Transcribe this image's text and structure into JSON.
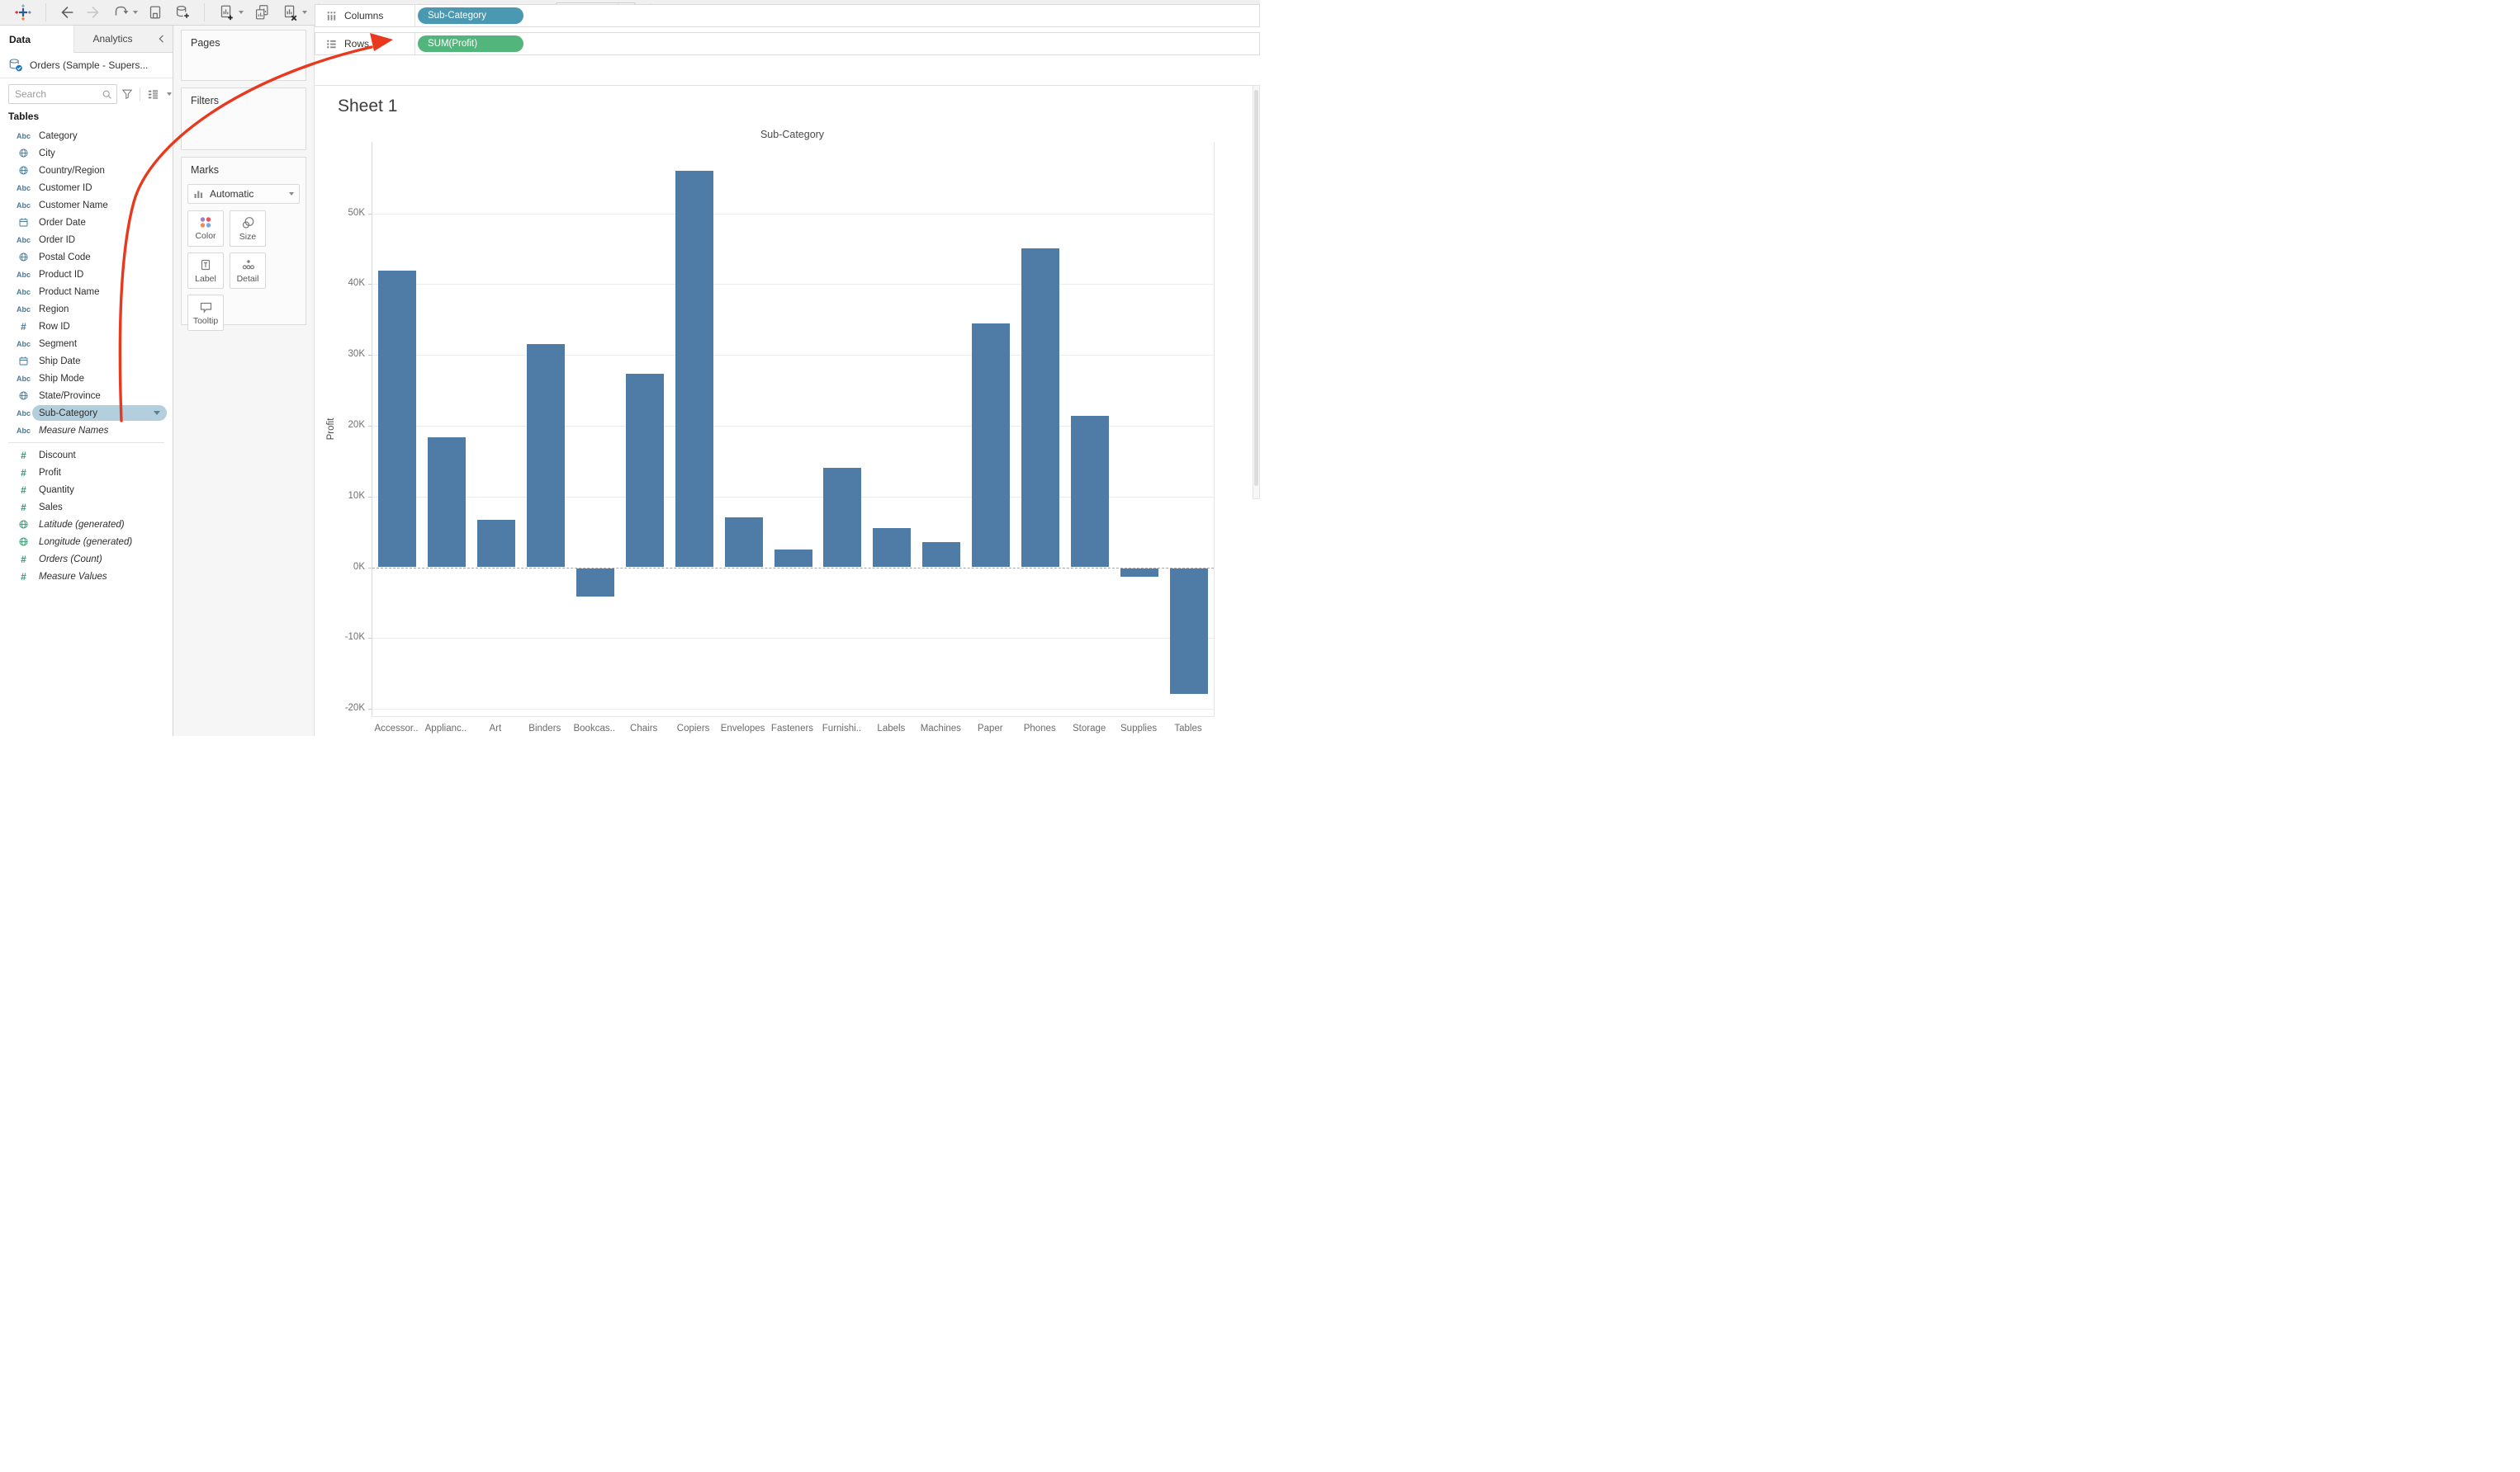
{
  "toolbar": {
    "fit_mode": "Standard"
  },
  "sidebar": {
    "tab_data": "Data",
    "tab_analytics": "Analytics",
    "datasource": "Orders (Sample - Supers...",
    "search_placeholder": "Search",
    "tables_label": "Tables",
    "fields": [
      {
        "label": "Category",
        "icon": "abc",
        "role": "dimension"
      },
      {
        "label": "City",
        "icon": "globe",
        "role": "dimension"
      },
      {
        "label": "Country/Region",
        "icon": "globe",
        "role": "dimension"
      },
      {
        "label": "Customer ID",
        "icon": "abc",
        "role": "dimension"
      },
      {
        "label": "Customer Name",
        "icon": "abc",
        "role": "dimension"
      },
      {
        "label": "Order Date",
        "icon": "calendar",
        "role": "dimension"
      },
      {
        "label": "Order ID",
        "icon": "abc",
        "role": "dimension"
      },
      {
        "label": "Postal Code",
        "icon": "globe",
        "role": "dimension"
      },
      {
        "label": "Product ID",
        "icon": "abc",
        "role": "dimension"
      },
      {
        "label": "Product Name",
        "icon": "abc",
        "role": "dimension"
      },
      {
        "label": "Region",
        "icon": "abc",
        "role": "dimension"
      },
      {
        "label": "Row ID",
        "icon": "hash",
        "role": "dimension"
      },
      {
        "label": "Segment",
        "icon": "abc",
        "role": "dimension"
      },
      {
        "label": "Ship Date",
        "icon": "calendar",
        "role": "dimension"
      },
      {
        "label": "Ship Mode",
        "icon": "abc",
        "role": "dimension"
      },
      {
        "label": "State/Province",
        "icon": "globe",
        "role": "dimension"
      },
      {
        "label": "Sub-Category",
        "icon": "abc",
        "role": "dimension",
        "selected": true
      },
      {
        "label": "Measure Names",
        "icon": "abc",
        "role": "dimension",
        "italic": true
      },
      {
        "label": "Discount",
        "icon": "hash",
        "role": "measure",
        "divider_before": true
      },
      {
        "label": "Profit",
        "icon": "hash",
        "role": "measure"
      },
      {
        "label": "Quantity",
        "icon": "hash",
        "role": "measure"
      },
      {
        "label": "Sales",
        "icon": "hash",
        "role": "measure"
      },
      {
        "label": "Latitude (generated)",
        "icon": "globe",
        "role": "measure",
        "italic": true
      },
      {
        "label": "Longitude (generated)",
        "icon": "globe",
        "role": "measure",
        "italic": true
      },
      {
        "label": "Orders (Count)",
        "icon": "hash",
        "role": "measure",
        "italic": true
      },
      {
        "label": "Measure Values",
        "icon": "hash",
        "role": "measure",
        "italic": true
      }
    ]
  },
  "cards": {
    "pages_label": "Pages",
    "filters_label": "Filters",
    "marks_label": "Marks",
    "mark_type": "Automatic",
    "mark_buttons": [
      {
        "id": "color",
        "label": "Color"
      },
      {
        "id": "size",
        "label": "Size"
      },
      {
        "id": "label",
        "label": "Label"
      },
      {
        "id": "detail",
        "label": "Detail"
      },
      {
        "id": "tooltip",
        "label": "Tooltip"
      }
    ],
    "color_dots": [
      "#A87BC8",
      "#E5575E",
      "#EE8E4E",
      "#7BA7DC"
    ]
  },
  "shelves": {
    "columns_label": "Columns",
    "rows_label": "Rows",
    "columns_pills": [
      {
        "label": "Sub-Category",
        "type": "dimension"
      }
    ],
    "rows_pills": [
      {
        "label": "SUM(Profit)",
        "type": "measure"
      }
    ]
  },
  "sheet": {
    "title": "Sheet 1"
  },
  "chart_data": {
    "type": "bar",
    "title": "Sub-Category",
    "ylabel": "Profit",
    "categories": [
      "Accessor..",
      "Applianc..",
      "Art",
      "Binders",
      "Bookcas..",
      "Chairs",
      "Copiers",
      "Envelopes",
      "Fasteners",
      "Furnishi..",
      "Labels",
      "Machines",
      "Paper",
      "Phones",
      "Storage",
      "Supplies",
      "Tables"
    ],
    "values": [
      41900,
      18300,
      6700,
      31500,
      -4000,
      27300,
      56000,
      7000,
      2500,
      14000,
      5500,
      3500,
      34400,
      45100,
      21400,
      -1200,
      -17800
    ],
    "y_ticks": [
      {
        "label": "50K",
        "value": 50000
      },
      {
        "label": "40K",
        "value": 40000
      },
      {
        "label": "30K",
        "value": 30000
      },
      {
        "label": "20K",
        "value": 20000
      },
      {
        "label": "10K",
        "value": 10000
      },
      {
        "label": "0K",
        "value": 0
      },
      {
        "label": "-10K",
        "value": -10000
      },
      {
        "label": "-20K",
        "value": -20000
      }
    ],
    "ylim": [
      -21000,
      60000
    ],
    "grid": true,
    "zero_line": "dashed",
    "legend": "none",
    "bar_color": "#4E7CA6"
  },
  "colors": {
    "dimension_pill": "#4A98B2",
    "measure_pill": "#52B57C",
    "bar": "#4E7CA6",
    "field_selected_bg": "#B3CEDC",
    "dimension_icon": "#4A7A9A",
    "measure_icon": "#3A9670",
    "annotation_arrow": "#E8391F"
  },
  "annotation": {
    "type": "arrow",
    "meaning": "Sub-Category field dragged to Columns shelf"
  }
}
